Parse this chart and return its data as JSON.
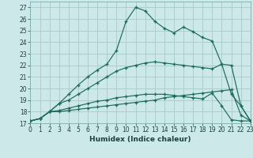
{
  "xlabel": "Humidex (Indice chaleur)",
  "xlim": [
    0,
    23
  ],
  "ylim": [
    17,
    27.5
  ],
  "xticks": [
    0,
    1,
    2,
    3,
    4,
    5,
    6,
    7,
    8,
    9,
    10,
    11,
    12,
    13,
    14,
    15,
    16,
    17,
    18,
    19,
    20,
    21,
    22,
    23
  ],
  "yticks": [
    17,
    18,
    19,
    20,
    21,
    22,
    23,
    24,
    25,
    26,
    27
  ],
  "bg_color": "#cce8e8",
  "line_color": "#1a6b5a",
  "grid_color": "#b8d8d8",
  "lines": [
    [
      17.2,
      17.4,
      18.0,
      18.0,
      18.1,
      18.2,
      18.3,
      18.4,
      18.5,
      18.6,
      18.7,
      18.8,
      18.9,
      19.0,
      19.2,
      19.3,
      19.4,
      19.5,
      19.6,
      19.7,
      19.8,
      19.9,
      17.7,
      17.2
    ],
    [
      17.2,
      17.4,
      18.0,
      18.1,
      18.3,
      18.5,
      18.7,
      18.9,
      19.0,
      19.2,
      19.3,
      19.4,
      19.5,
      19.5,
      19.5,
      19.4,
      19.3,
      19.2,
      19.1,
      19.6,
      18.5,
      17.3,
      17.2,
      17.2
    ],
    [
      17.2,
      17.4,
      18.0,
      18.7,
      19.0,
      19.5,
      20.0,
      20.5,
      21.0,
      21.5,
      21.8,
      22.0,
      22.2,
      22.3,
      22.2,
      22.1,
      22.0,
      21.9,
      21.8,
      21.7,
      22.1,
      22.0,
      18.5,
      17.2
    ],
    [
      17.2,
      17.4,
      18.0,
      18.7,
      19.5,
      20.3,
      21.0,
      21.6,
      22.1,
      23.3,
      25.8,
      27.0,
      26.7,
      25.8,
      25.2,
      24.8,
      25.3,
      24.9,
      24.4,
      24.1,
      22.1,
      19.5,
      18.5,
      17.2
    ]
  ]
}
